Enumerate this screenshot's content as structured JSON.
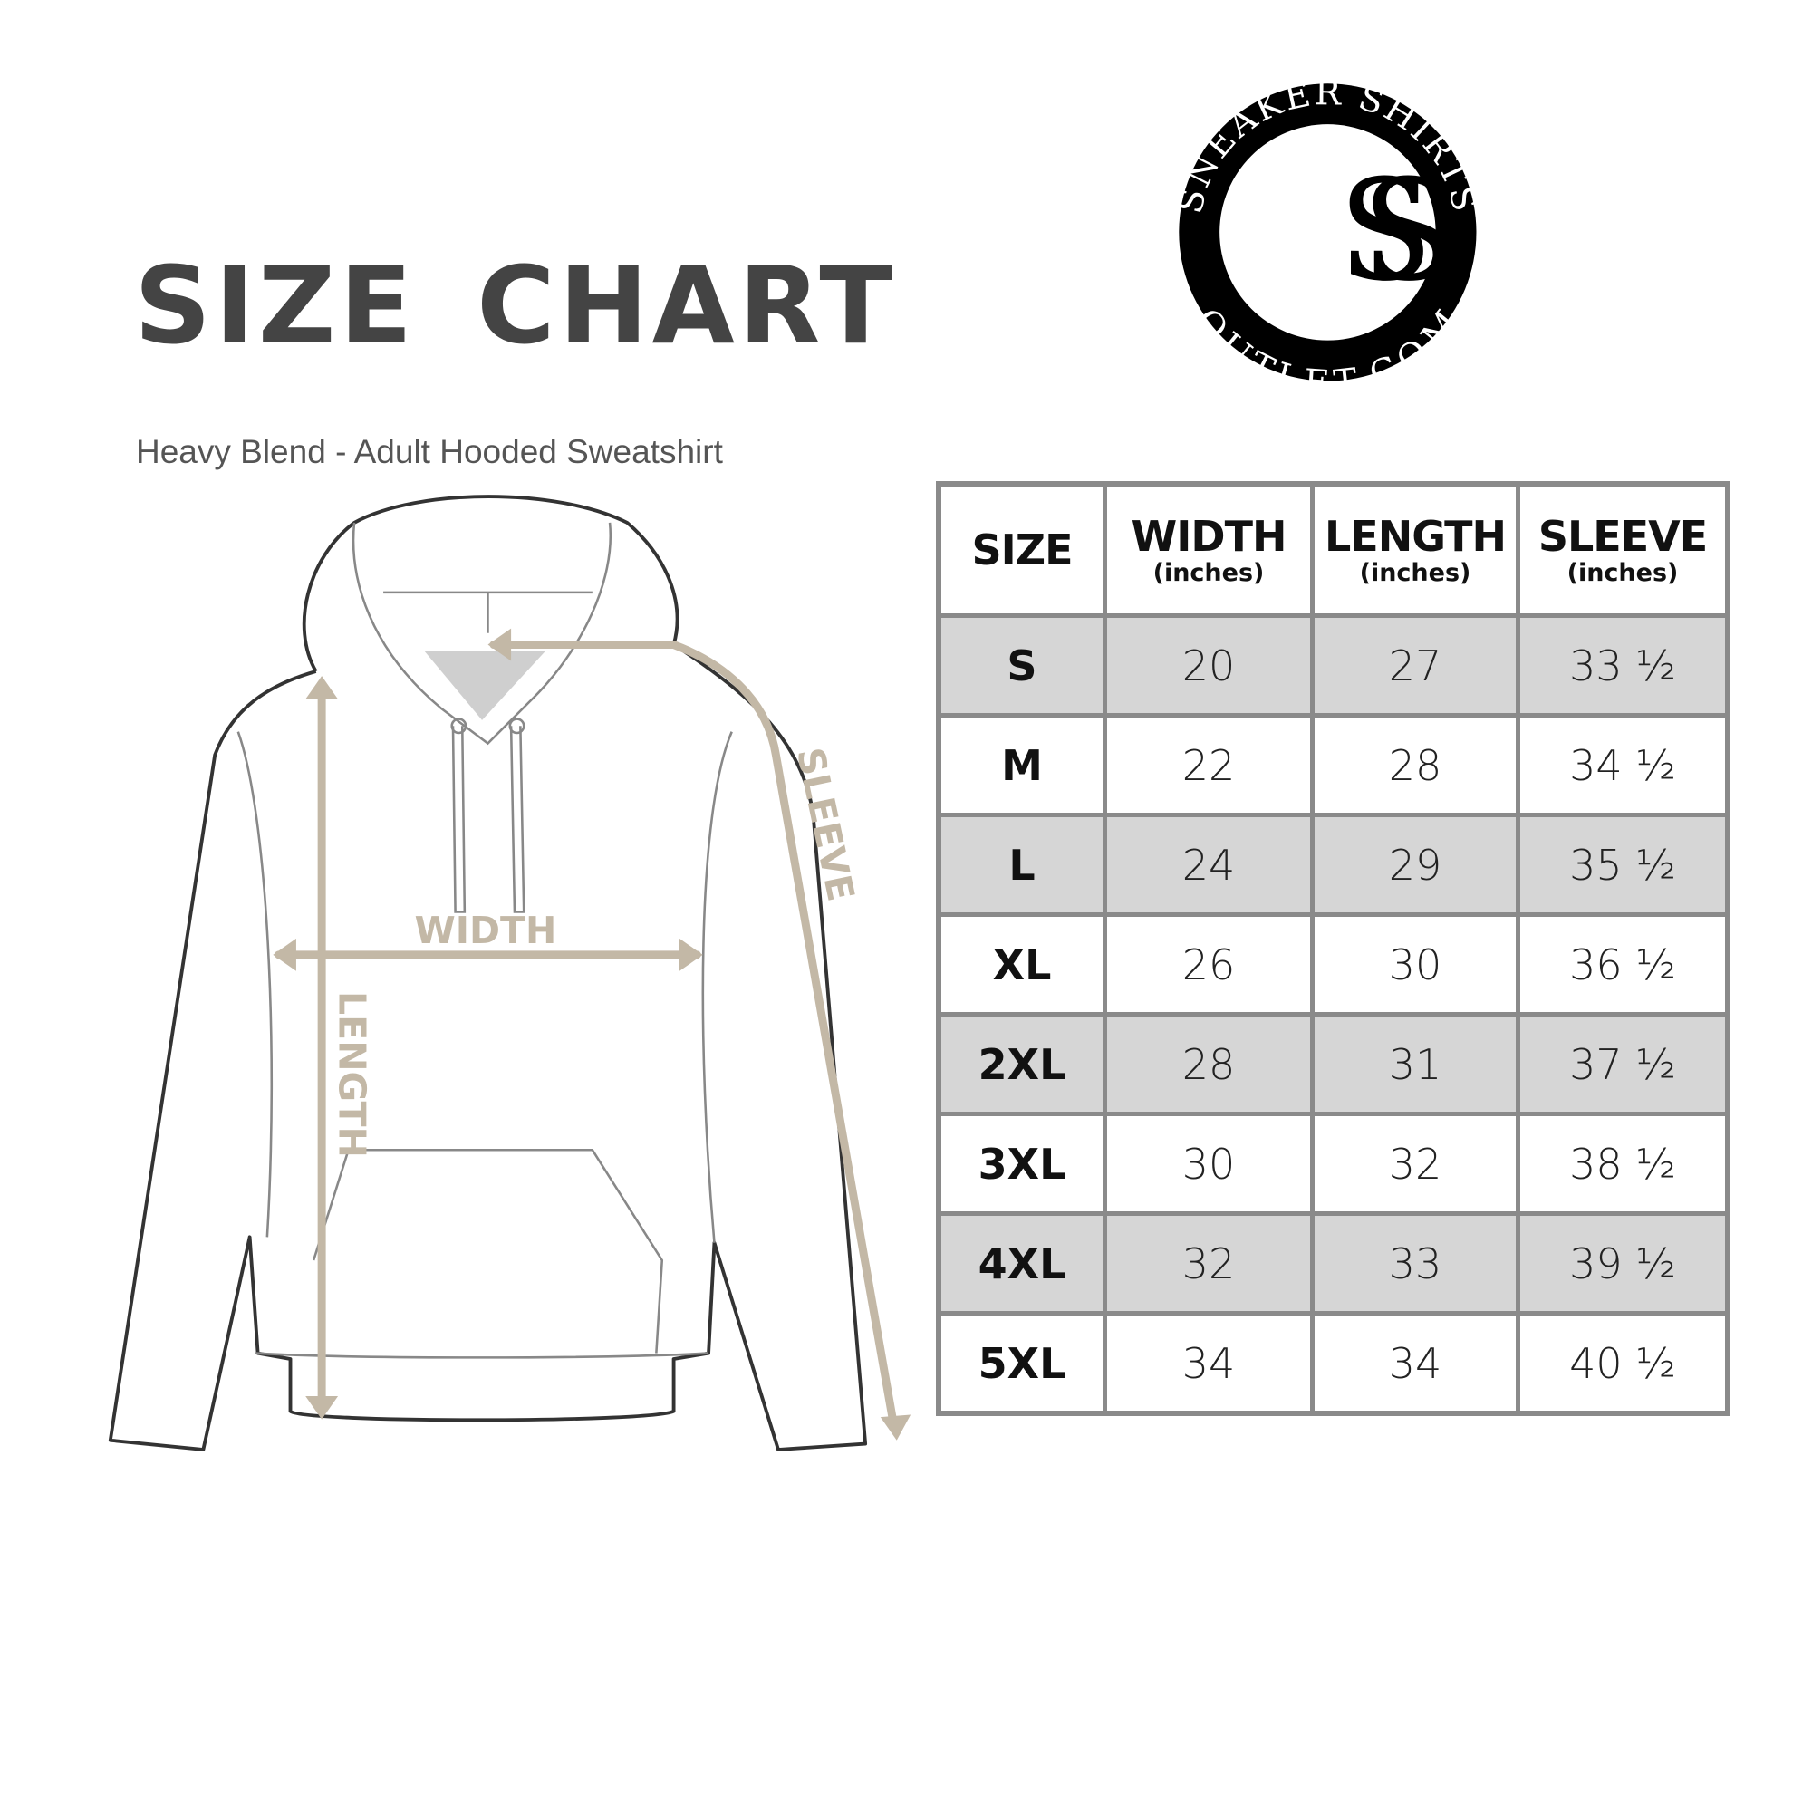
{
  "title": "SIZE CHART",
  "subtitle": "Heavy Blend - Adult Hooded Sweatshirt",
  "logo": {
    "top_text": "SNEAKER SHIRTS",
    "bottom_text": "OUTLET.COM",
    "monogram": "SS"
  },
  "diagram": {
    "width_label": "WIDTH",
    "length_label": "LENGTH",
    "sleeve_label": "SLEEVE",
    "arrow_color": "#c3b8a6"
  },
  "table": {
    "headers": [
      {
        "label": "SIZE",
        "unit": ""
      },
      {
        "label": "WIDTH",
        "unit": "(inches)"
      },
      {
        "label": "LENGTH",
        "unit": "(inches)"
      },
      {
        "label": "SLEEVE",
        "unit": "(inches)"
      }
    ],
    "rows": [
      [
        "S",
        "20",
        "27",
        "33 ½"
      ],
      [
        "M",
        "22",
        "28",
        "34 ½"
      ],
      [
        "L",
        "24",
        "29",
        "35 ½"
      ],
      [
        "XL",
        "26",
        "30",
        "36 ½"
      ],
      [
        "2XL",
        "28",
        "31",
        "37 ½"
      ],
      [
        "3XL",
        "30",
        "32",
        "38 ½"
      ],
      [
        "4XL",
        "32",
        "33",
        "39 ½"
      ],
      [
        "5XL",
        "34",
        "34",
        "40 ½"
      ]
    ]
  }
}
